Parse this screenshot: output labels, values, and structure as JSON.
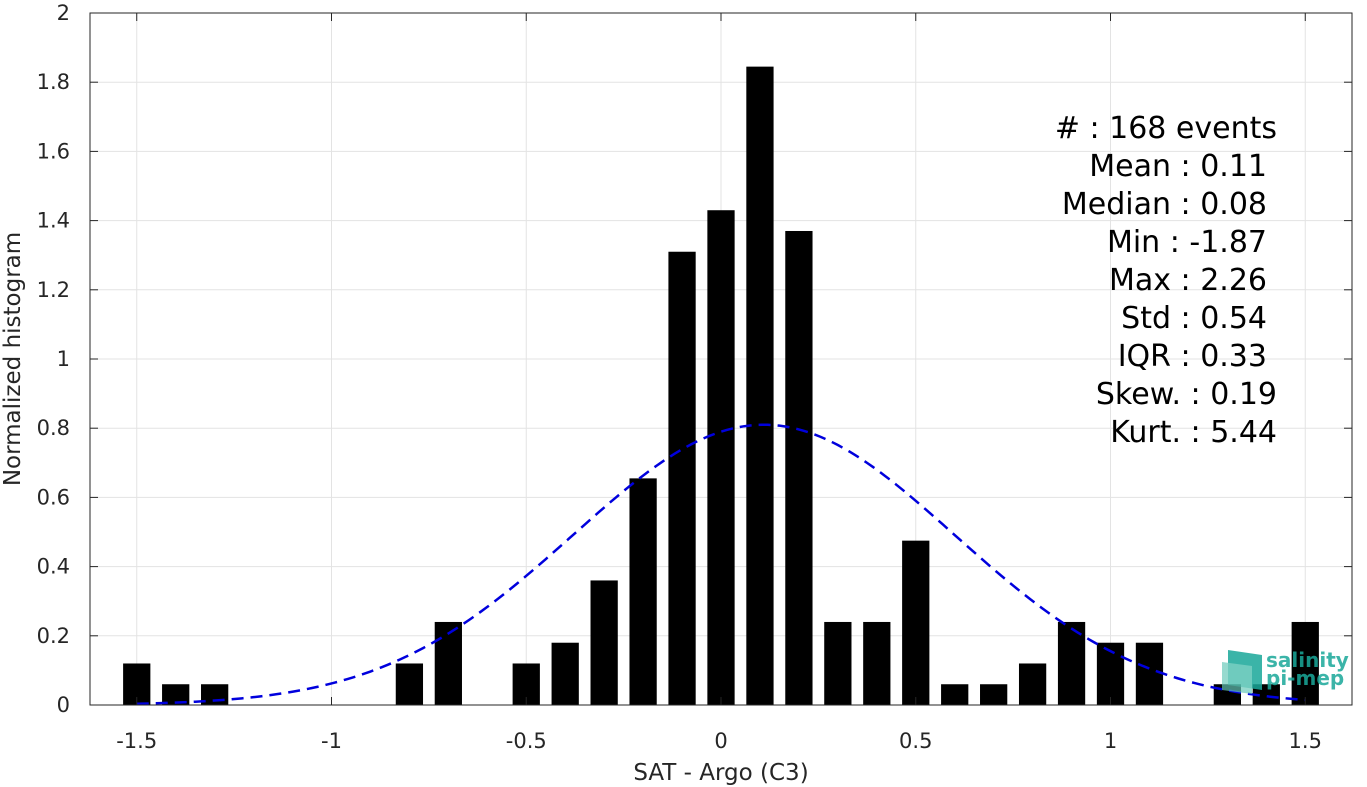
{
  "chart_data": {
    "type": "bar",
    "xlabel": "SAT - Argo (C3)",
    "ylabel": "Normalized histogram",
    "xlim": [
      -1.62,
      1.62
    ],
    "ylim": [
      0,
      2
    ],
    "xticks": [
      -1.5,
      -1,
      -0.5,
      0,
      0.5,
      1,
      1.5
    ],
    "xtick_labels": [
      "-1.5",
      "-1",
      "-0.5",
      "0",
      "0.5",
      "1",
      "1.5"
    ],
    "yticks": [
      0,
      0.2,
      0.4,
      0.6,
      0.8,
      1,
      1.2,
      1.4,
      1.6,
      1.8,
      2
    ],
    "ytick_labels": [
      "0",
      "0.2",
      "0.4",
      "0.6",
      "0.8",
      "1",
      "1.2",
      "1.4",
      "1.6",
      "1.8",
      "2"
    ],
    "grid": true,
    "bar_width": 0.07,
    "bar_color": "#000000",
    "bars": {
      "x": [
        -1.5,
        -1.4,
        -1.3,
        -1.2,
        -1.1,
        -1.0,
        -0.9,
        -0.8,
        -0.7,
        -0.6,
        -0.5,
        -0.4,
        -0.3,
        -0.2,
        -0.1,
        0.0,
        0.1,
        0.2,
        0.3,
        0.4,
        0.5,
        0.6,
        0.7,
        0.8,
        0.9,
        1.0,
        1.1,
        1.2,
        1.3,
        1.4,
        1.5
      ],
      "values": [
        0.12,
        0.06,
        0.06,
        0,
        0,
        0,
        0,
        0.12,
        0.24,
        0,
        0.12,
        0.18,
        0.36,
        0.655,
        1.31,
        1.43,
        1.845,
        1.37,
        0.24,
        0.24,
        0.475,
        0.06,
        0.06,
        0.12,
        0.24,
        0.18,
        0.18,
        0,
        0.06,
        0.06,
        0.24
      ]
    },
    "fit": {
      "type": "normal",
      "mean": 0.11,
      "std": 0.49,
      "peak": 0.81,
      "x_range": [
        -1.5,
        1.5
      ],
      "color": "#0000dd",
      "style": "dashed"
    }
  },
  "stats": {
    "count": "#  : 168 events",
    "mean": "Mean : 0.11",
    "median": "Median : 0.08",
    "min": "Min : -1.87",
    "max": "Max : 2.26",
    "std": "Std : 0.54",
    "iqr": "IQR : 0.33",
    "skew": "Skew. : 0.19",
    "kurt": "Kurt. : 5.44"
  },
  "logo": {
    "line1": "salinity",
    "line2": "pi-mep",
    "icon": "pimep-logo-icon"
  }
}
